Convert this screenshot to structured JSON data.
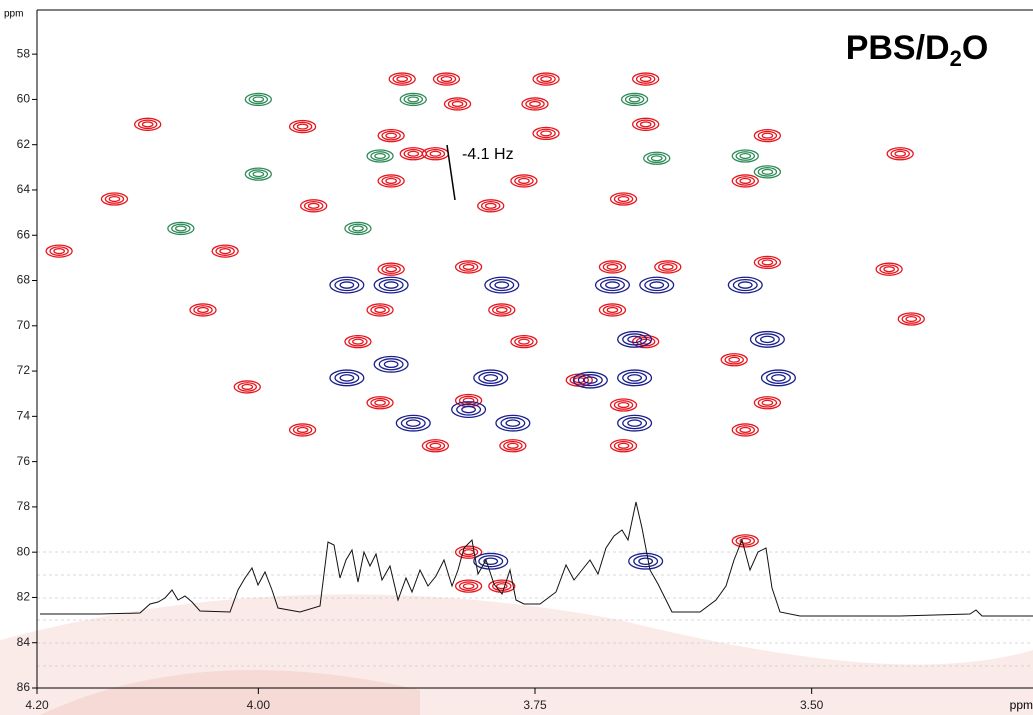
{
  "chart_data": {
    "type": "contour-peaks",
    "title_parts": [
      "PBS/D",
      "2",
      "O"
    ],
    "x_label": "ppm",
    "y_label": "ppm",
    "annotation": "-4.1 Hz",
    "xlim": [
      4.2,
      3.3
    ],
    "ylim": [
      56.05,
      86
    ],
    "xticks": [
      {
        "value": 4.2,
        "label": "4.20"
      },
      {
        "value": 4.0,
        "label": "4.00"
      },
      3.75,
      {
        "value": 3.5,
        "label": "3.50"
      }
    ],
    "yticks": [
      58,
      60,
      62,
      64,
      66,
      68,
      70,
      72,
      74,
      76,
      78,
      80,
      82,
      84,
      86
    ],
    "series": [
      {
        "color": "#e8141c",
        "x": [
          3.87,
          3.83,
          3.74,
          3.65,
          3.82,
          3.75,
          3.65,
          4.1,
          3.96,
          3.88,
          3.74,
          3.54,
          3.42,
          3.86,
          3.84,
          3.88,
          3.79,
          3.76,
          4.13,
          3.95,
          3.67,
          3.56,
          4.18,
          4.03,
          3.88,
          3.81,
          3.68,
          3.63,
          3.54,
          3.43,
          4.05,
          3.89,
          3.78,
          3.68,
          3.41,
          3.91,
          3.76,
          3.65,
          4.01,
          3.89,
          3.81,
          3.67,
          3.54,
          3.96,
          3.84,
          3.77,
          3.67,
          3.56,
          3.81,
          3.78,
          3.81,
          3.56,
          3.71,
          3.57
        ],
        "values": [
          59.1,
          59.1,
          59.1,
          59.1,
          60.2,
          60.2,
          61.1,
          61.1,
          61.2,
          61.6,
          61.5,
          61.6,
          62.4,
          62.4,
          62.4,
          63.6,
          64.7,
          63.6,
          64.4,
          64.7,
          64.4,
          63.6,
          66.7,
          66.7,
          67.5,
          67.4,
          67.4,
          67.4,
          67.2,
          67.5,
          69.3,
          69.3,
          69.3,
          69.3,
          69.7,
          70.7,
          70.7,
          70.7,
          72.7,
          73.4,
          73.3,
          73.5,
          73.4,
          74.6,
          75.3,
          75.3,
          75.3,
          74.6,
          81.5,
          81.5,
          80.0,
          79.5,
          72.4,
          71.5
        ]
      },
      {
        "color": "#1a1f8c",
        "x": [
          3.92,
          3.88,
          3.78,
          3.68,
          3.64,
          3.56,
          3.66,
          3.54,
          3.92,
          3.88,
          3.79,
          3.7,
          3.66,
          3.53,
          3.81,
          3.86,
          3.77,
          3.66,
          3.79,
          3.65
        ],
        "values": [
          68.2,
          68.2,
          68.2,
          68.2,
          68.2,
          68.2,
          70.6,
          70.6,
          72.3,
          71.7,
          72.3,
          72.4,
          72.3,
          72.3,
          73.7,
          74.3,
          74.3,
          74.3,
          80.4,
          80.4
        ]
      },
      {
        "color": "#2e8b57",
        "x": [
          4.0,
          3.86,
          3.66,
          3.89,
          3.64,
          3.56,
          4.0,
          3.54,
          4.07,
          3.91
        ],
        "values": [
          60.0,
          60.0,
          60.0,
          62.5,
          62.6,
          62.5,
          63.3,
          63.2,
          65.7,
          65.7
        ]
      }
    ]
  }
}
